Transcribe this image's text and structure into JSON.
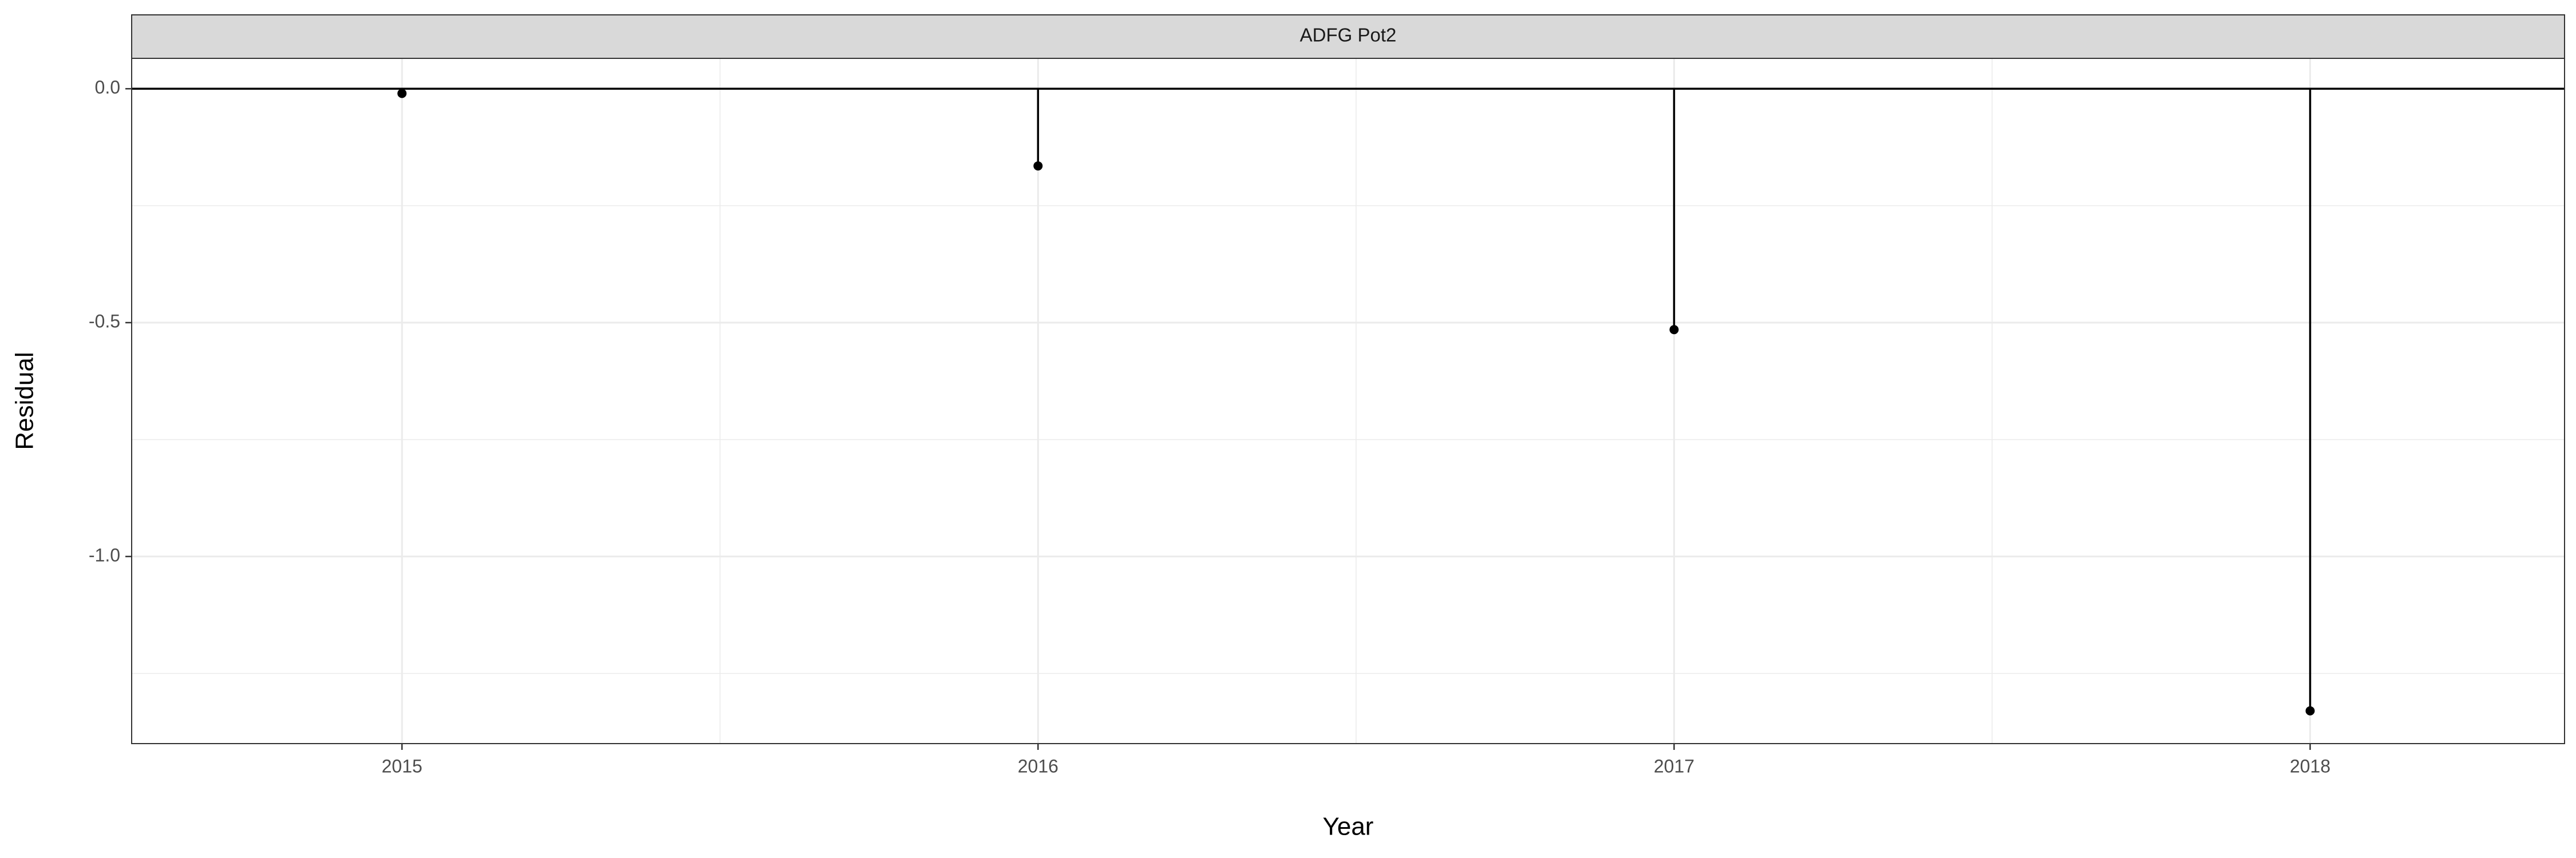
{
  "chart_data": {
    "type": "scatter",
    "style": "lollipop (vertical segments from zero baseline to each point)",
    "facet_title": "ADFG Pot2",
    "xlabel": "Year",
    "ylabel": "Residual",
    "x": [
      2015,
      2016,
      2017,
      2018
    ],
    "series": [
      {
        "values": [
          -0.01,
          -0.165,
          -0.515,
          -1.33
        ]
      }
    ],
    "x_ticks": [
      "2015",
      "2016",
      "2017",
      "2018"
    ],
    "y_ticks": [
      "0.0",
      "-0.5",
      "-1.0"
    ],
    "xlim": [
      2014.575,
      2018.4
    ],
    "ylim": [
      -1.4,
      0.065
    ],
    "reference_line_y": 0,
    "grid": true,
    "colors": {
      "point": "#000000",
      "segment": "#000000",
      "grid": "#ebebeb",
      "strip_fill": "#d9d9d9",
      "panel_border": "#333333"
    }
  }
}
